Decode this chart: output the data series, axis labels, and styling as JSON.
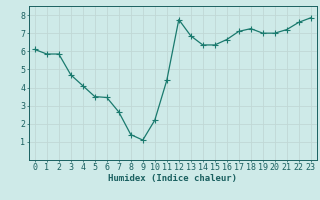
{
  "x": [
    0,
    1,
    2,
    3,
    4,
    5,
    6,
    7,
    8,
    9,
    10,
    11,
    12,
    13,
    14,
    15,
    16,
    17,
    18,
    19,
    20,
    21,
    22,
    23
  ],
  "y": [
    6.1,
    5.85,
    5.85,
    4.7,
    4.1,
    3.5,
    3.45,
    2.65,
    1.4,
    1.1,
    2.2,
    4.4,
    7.75,
    6.85,
    6.35,
    6.35,
    6.65,
    7.1,
    7.25,
    7.0,
    7.0,
    7.2,
    7.6,
    7.85
  ],
  "line_color": "#1a7a6e",
  "marker_color": "#1a7a6e",
  "bg_color": "#ceeae8",
  "grid_color": "#c0d8d5",
  "xlabel": "Humidex (Indice chaleur)",
  "xlim": [
    -0.5,
    23.5
  ],
  "ylim": [
    0,
    8.5
  ],
  "yticks": [
    1,
    2,
    3,
    4,
    5,
    6,
    7,
    8
  ],
  "xticks": [
    0,
    1,
    2,
    3,
    4,
    5,
    6,
    7,
    8,
    9,
    10,
    11,
    12,
    13,
    14,
    15,
    16,
    17,
    18,
    19,
    20,
    21,
    22,
    23
  ],
  "xlabel_fontsize": 6.5,
  "tick_fontsize": 6,
  "axis_color": "#1a6060",
  "linewidth": 0.9,
  "markersize": 2.2
}
